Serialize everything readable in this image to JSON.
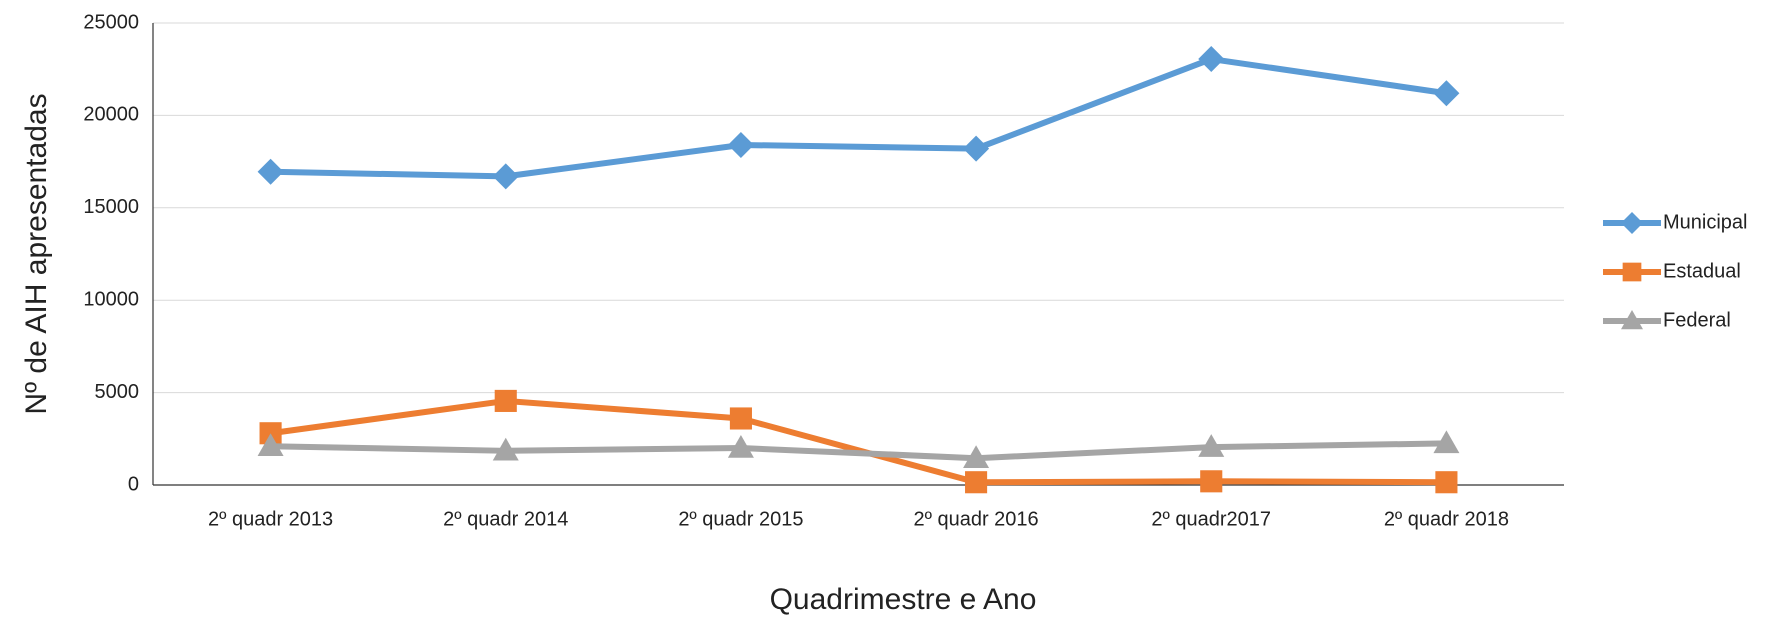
{
  "chart_data": {
    "type": "line",
    "xlabel": "Quadrimestre e Ano",
    "ylabel": "Nº de AIH apresentadas",
    "categories": [
      "2º quadr 2013",
      "2º quadr 2014",
      "2º quadr 2015",
      "2º quadr 2016",
      "2º quadr2017",
      "2º quadr 2018"
    ],
    "series": [
      {
        "name": "Municipal",
        "color": "#5b9bd5",
        "marker": "diamond",
        "values": [
          16950,
          16700,
          18400,
          18200,
          23050,
          21200
        ]
      },
      {
        "name": "Estadual",
        "color": "#ed7d31",
        "marker": "square",
        "values": [
          2800,
          4550,
          3600,
          150,
          200,
          150
        ]
      },
      {
        "name": "Federal",
        "color": "#a5a5a5",
        "marker": "triangle",
        "values": [
          2100,
          1850,
          2000,
          1450,
          2050,
          2250
        ]
      }
    ],
    "ylim": [
      0,
      25000
    ],
    "yticks": [
      0,
      5000,
      10000,
      15000,
      20000,
      25000
    ],
    "grid": true,
    "legend": "right"
  }
}
